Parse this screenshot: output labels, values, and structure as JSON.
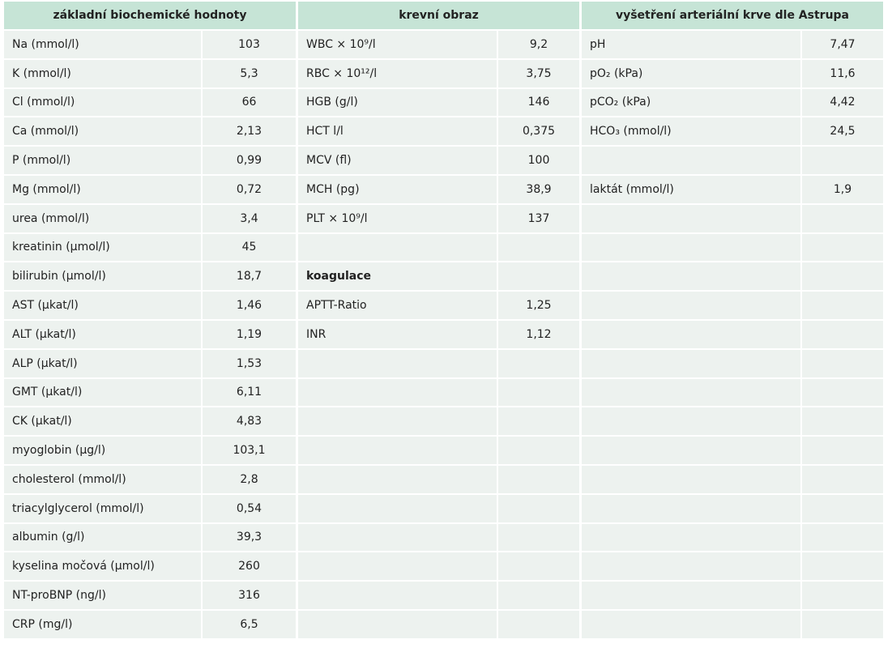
{
  "table": {
    "columns": [
      {
        "header": "základní biochemické hodnoty",
        "rows": [
          {
            "label": "Na (mmol/l)",
            "value": "103"
          },
          {
            "label": "K (mmol/l)",
            "value": "5,3"
          },
          {
            "label": "Cl (mmol/l)",
            "value": "66"
          },
          {
            "label": "Ca (mmol/l)",
            "value": "2,13"
          },
          {
            "label": "P (mmol/l)",
            "value": "0,99"
          },
          {
            "label": "Mg (mmol/l)",
            "value": "0,72"
          },
          {
            "label": "urea (mmol/l)",
            "value": "3,4"
          },
          {
            "label": "kreatinin (µmol/l)",
            "value": "45"
          },
          {
            "label": "bilirubin (µmol/l)",
            "value": "18,7"
          },
          {
            "label": "AST (µkat/l)",
            "value": "1,46"
          },
          {
            "label": "ALT (µkat/l)",
            "value": "1,19"
          },
          {
            "label": "ALP (µkat/l)",
            "value": "1,53"
          },
          {
            "label": "GMT (µkat/l)",
            "value": "6,11"
          },
          {
            "label": "CK (µkat/l)",
            "value": "4,83"
          },
          {
            "label": "myoglobin (µg/l)",
            "value": "103,1"
          },
          {
            "label": "cholesterol (mmol/l)",
            "value": "2,8"
          },
          {
            "label": "triacylglycerol (mmol/l)",
            "value": "0,54"
          },
          {
            "label": "albumin (g/l)",
            "value": "39,3"
          },
          {
            "label": "kyselina močová (µmol/l)",
            "value": "260"
          },
          {
            "label": "NT-proBNP (ng/l)",
            "value": "316"
          },
          {
            "label": "CRP (mg/l)",
            "value": "6,5"
          }
        ]
      },
      {
        "header": "krevní obraz",
        "rows": [
          {
            "label": "WBC × 10⁹/l",
            "value": "9,2"
          },
          {
            "label": "RBC × 10¹²/l",
            "value": "3,75"
          },
          {
            "label": "HGB (g/l)",
            "value": "146"
          },
          {
            "label": "HCT l/l",
            "value": "0,375"
          },
          {
            "label": "MCV (fl)",
            "value": "100"
          },
          {
            "label": "MCH (pg)",
            "value": "38,9"
          },
          {
            "label": "PLT × 10⁹/l",
            "value": "137"
          },
          null,
          {
            "label": "koagulace",
            "bold": true
          },
          {
            "label": "APTT-Ratio",
            "value": "1,25"
          },
          {
            "label": "INR",
            "value": "1,12"
          }
        ]
      },
      {
        "header": "vyšetření arteriální krve dle Astrupa",
        "rows": [
          {
            "label": "pH",
            "value": "7,47"
          },
          {
            "label": "pO₂ (kPa)",
            "value": "11,6"
          },
          {
            "label": "pCO₂ (kPa)",
            "value": "4,42"
          },
          {
            "label": "HCO₃ (mmol/l)",
            "value": "24,5"
          },
          null,
          {
            "label": "laktát (mmol/l)",
            "value": "1,9"
          }
        ]
      }
    ]
  }
}
